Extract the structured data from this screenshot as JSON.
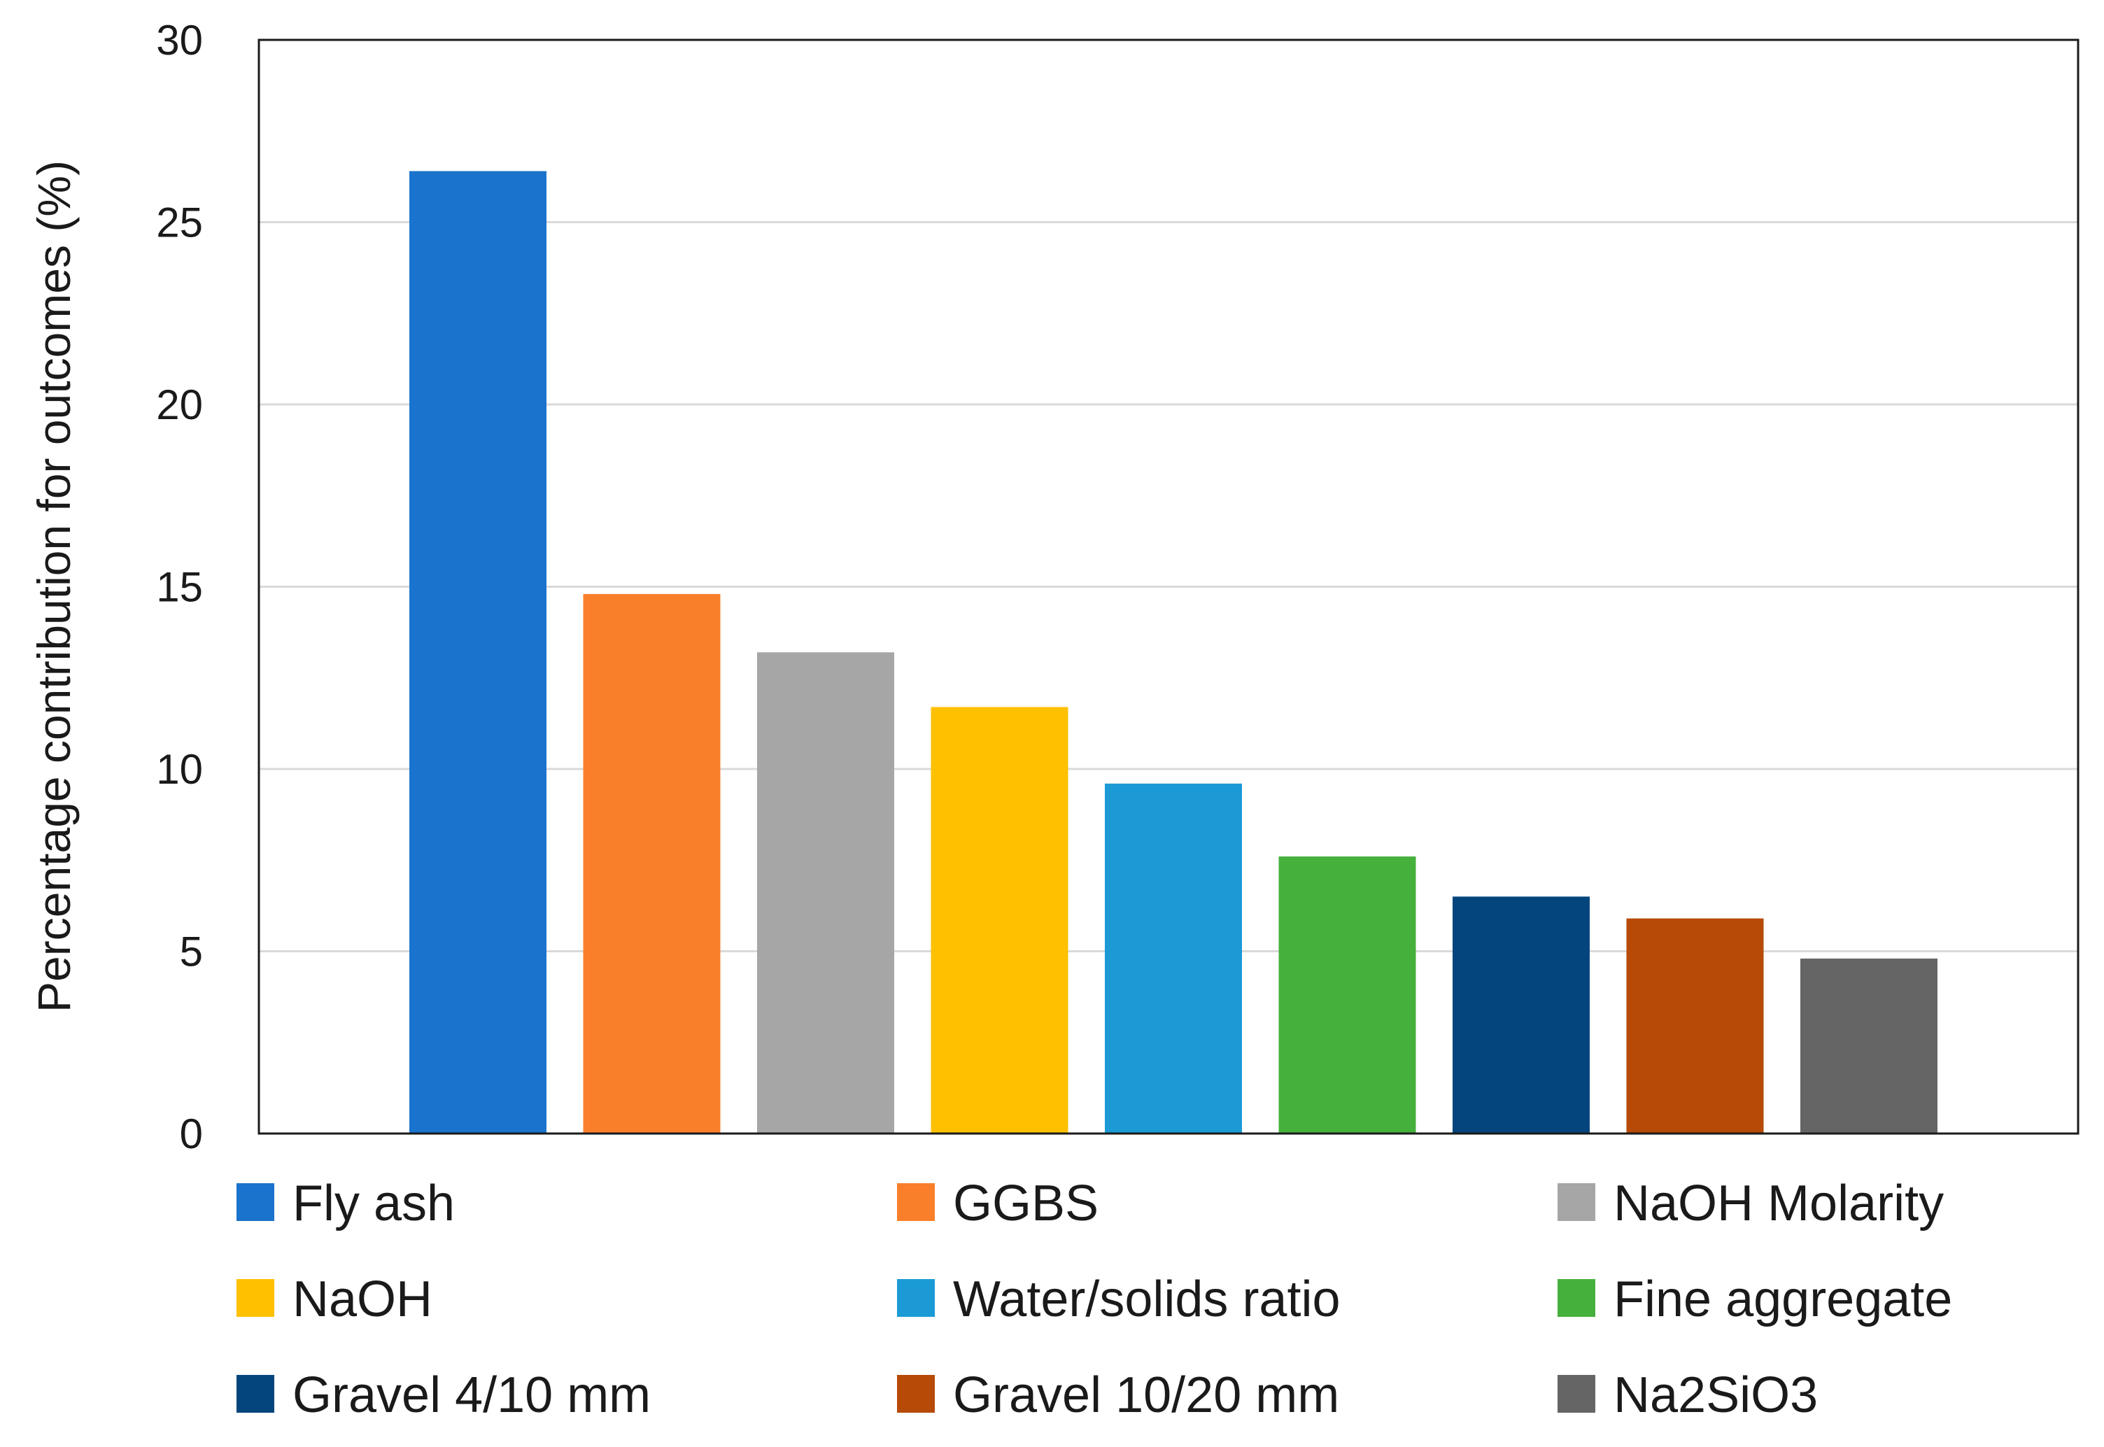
{
  "chart_data": {
    "type": "bar",
    "title": "",
    "xlabel": "",
    "ylabel": "Percentage contribution for outcomes (%)",
    "ylim": [
      0,
      30
    ],
    "yticks": [
      0,
      5,
      10,
      15,
      20,
      25,
      30
    ],
    "ytick_labels": [
      "0",
      "5",
      "10",
      "15",
      "20",
      "25",
      "30"
    ],
    "grid": true,
    "legend_position": "bottom",
    "categories": [
      "Fly ash",
      "GGBS",
      "NaOH Molarity",
      "NaOH",
      "Water/solids ratio",
      "Fine aggregate",
      "Gravel 4/10 mm",
      "Gravel 10/20 mm",
      "Na2SiO3"
    ],
    "values": [
      26.4,
      14.8,
      13.2,
      11.7,
      9.6,
      7.6,
      6.5,
      5.9,
      4.8
    ],
    "colors": [
      "#1a73cc",
      "#fa7f2a",
      "#a6a6a6",
      "#ffc000",
      "#1b9ad6",
      "#46b03c",
      "#05457d",
      "#b64a06",
      "#656565"
    ]
  }
}
